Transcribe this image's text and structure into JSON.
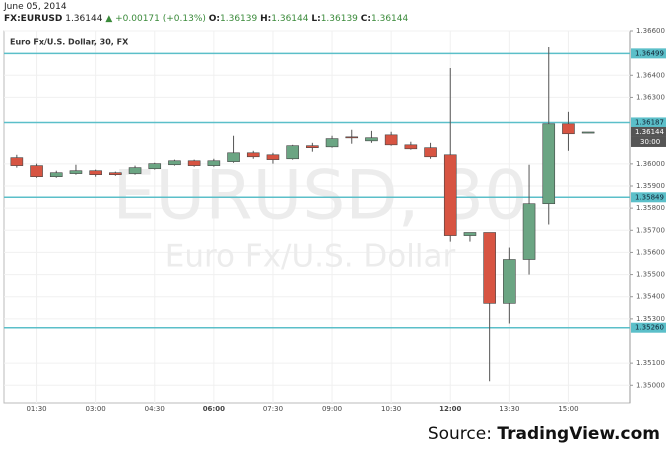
{
  "header": {
    "date": "June 05, 2014",
    "symbol": "FX:EURUSD",
    "price": "1.36144",
    "change": "+0.00171 (+0.13%)",
    "ohlc": [
      {
        "label": "O:",
        "value": "1.36139"
      },
      {
        "label": "H:",
        "value": "1.36144"
      },
      {
        "label": "L:",
        "value": "1.36139"
      },
      {
        "label": "C:",
        "value": "1.36144"
      }
    ]
  },
  "chart_data": {
    "type": "candlestick",
    "legend": "Euro Fx/U.S. Dollar, 30, FX",
    "watermark": "EURUSD, 30",
    "watermark_subtitle": "Euro Fx/U.S. Dollar",
    "categories": [
      null,
      "01:30",
      null,
      null,
      "03:00",
      null,
      null,
      "04:30",
      null,
      null,
      "06:00",
      null,
      null,
      "07:30",
      null,
      null,
      "09:00",
      null,
      null,
      "10:30",
      null,
      null,
      "12:00",
      null,
      null,
      "13:30",
      null,
      null,
      "15:00",
      null
    ],
    "open": [
      1.36028,
      1.35992,
      1.35942,
      1.35956,
      1.35969,
      1.3596,
      1.35956,
      1.35978,
      1.35996,
      1.36014,
      1.35992,
      1.3601,
      1.3605,
      1.36041,
      1.36023,
      1.36082,
      1.36077,
      1.36122,
      1.36104,
      1.36131,
      1.36086,
      1.36073,
      1.36041,
      1.35676,
      1.3569,
      1.3537,
      1.35568,
      1.3582,
      1.36181,
      1.36139
    ],
    "high": [
      1.36041,
      1.36001,
      1.35969,
      1.35996,
      1.35974,
      1.35965,
      1.35992,
      1.36005,
      1.36019,
      1.36019,
      1.36023,
      1.36127,
      1.36059,
      1.3605,
      1.36086,
      1.36095,
      1.36127,
      1.36154,
      1.36149,
      1.36145,
      1.361,
      1.36095,
      1.36433,
      1.3569,
      1.3569,
      1.35622,
      1.35996,
      1.36528,
      1.36235,
      1.36144
    ],
    "low": [
      1.35983,
      1.35937,
      1.35937,
      1.35951,
      1.35942,
      1.35946,
      1.35951,
      1.35974,
      1.35992,
      1.35987,
      1.35987,
      1.36005,
      1.36023,
      1.36001,
      1.36019,
      1.36055,
      1.36073,
      1.36091,
      1.36095,
      1.36082,
      1.36064,
      1.36023,
      1.35649,
      1.35649,
      1.35018,
      1.35279,
      1.355,
      1.35726,
      1.36059,
      1.36139
    ],
    "close": [
      1.35992,
      1.35942,
      1.3596,
      1.35969,
      1.35951,
      1.35951,
      1.35983,
      1.36001,
      1.36014,
      1.35992,
      1.36014,
      1.3605,
      1.36032,
      1.36019,
      1.36082,
      1.36073,
      1.36114,
      1.36118,
      1.36118,
      1.36086,
      1.36068,
      1.36032,
      1.35676,
      1.3569,
      1.3537,
      1.35568,
      1.3582,
      1.36181,
      1.36136,
      1.36144
    ],
    "up_color": "#6ba583",
    "down_color": "#d75442",
    "ylim": [
      1.3492,
      1.366
    ],
    "yticks": [
      {
        "value": 1.366,
        "label": "1.36600"
      },
      {
        "value": 1.364,
        "label": "1.36400"
      },
      {
        "value": 1.363,
        "label": "1.36300"
      },
      {
        "value": 1.36,
        "label": "1.36000"
      },
      {
        "value": 1.359,
        "label": "1.35900"
      },
      {
        "value": 1.358,
        "label": "1.35800"
      },
      {
        "value": 1.357,
        "label": "1.35700"
      },
      {
        "value": 1.356,
        "label": "1.35600"
      },
      {
        "value": 1.355,
        "label": "1.35500"
      },
      {
        "value": 1.354,
        "label": "1.35400"
      },
      {
        "value": 1.353,
        "label": "1.35300"
      },
      {
        "value": 1.351,
        "label": "1.35100"
      },
      {
        "value": 1.35,
        "label": "1.35000"
      }
    ],
    "levels": [
      {
        "value": 1.36499,
        "label": "1.36499"
      },
      {
        "value": 1.36187,
        "label": "1.36187"
      },
      {
        "value": 1.35849,
        "label": "1.35849"
      },
      {
        "value": 1.3526,
        "label": "1.35260"
      }
    ],
    "level_color": "#5bbfc9",
    "last_price": {
      "value": 1.36144,
      "label": "1.36144"
    },
    "countdown": "30:00",
    "grid": true
  },
  "source": {
    "prefix": "Source:",
    "site": "TradingView.com"
  }
}
